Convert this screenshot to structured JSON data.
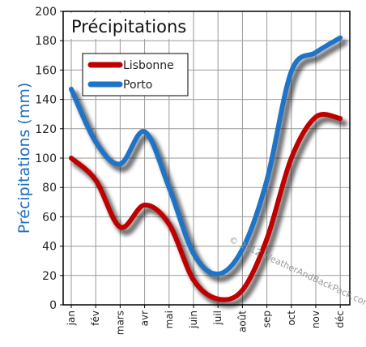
{
  "chart_data": {
    "type": "line",
    "title": "Précipitations",
    "ylabel": "Précipitations (mm)",
    "xlabel": "",
    "categories": [
      "jan",
      "fév",
      "mars",
      "avr",
      "mai",
      "juin",
      "juil",
      "août",
      "sep",
      "oct",
      "nov",
      "déc"
    ],
    "ylim": [
      0,
      200
    ],
    "yticks": [
      0,
      20,
      40,
      60,
      80,
      100,
      120,
      140,
      160,
      180,
      200
    ],
    "grid": true,
    "legend_position": "top-left",
    "watermark": "© 2012 WeatherAndBackPack.com",
    "series": [
      {
        "name": "Lisbonne",
        "color": "#c00000",
        "values": [
          100,
          85,
          53,
          68,
          55,
          17,
          4,
          10,
          45,
          100,
          128,
          127
        ]
      },
      {
        "name": "Porto",
        "color": "#1f74c8",
        "values": [
          147,
          111,
          96,
          118,
          80,
          35,
          21,
          38,
          85,
          159,
          172,
          182
        ]
      }
    ]
  }
}
